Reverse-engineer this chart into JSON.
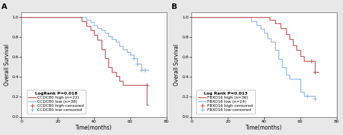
{
  "panel_A": {
    "label": "A",
    "title_logrank": "LogRank P=0.018",
    "high_label": "CCDC80 high (n=22)",
    "low_label": "CCDC80 low (n=38)",
    "high_censored_label": "CCDC80 high-censored",
    "low_censored_label": "CCDC80 low-censored",
    "high_color": "#c0504d",
    "low_color": "#8eb4e3",
    "xlabel": "Time(months)",
    "ylabel": "Overall Survival",
    "xlim": [
      0,
      75
    ],
    "ylim": [
      0.0,
      1.05
    ],
    "xticks": [
      0,
      20,
      40,
      60,
      80
    ],
    "yticks": [
      0.0,
      0.2,
      0.4,
      0.6,
      0.8,
      1.0
    ],
    "high_times": [
      0,
      30,
      33,
      36,
      38,
      40,
      42,
      44,
      46,
      48,
      50,
      52,
      54,
      56,
      57,
      59,
      61,
      63,
      65,
      67,
      69,
      70
    ],
    "high_surv": [
      1.0,
      1.0,
      0.96,
      0.91,
      0.87,
      0.82,
      0.77,
      0.68,
      0.59,
      0.5,
      0.45,
      0.41,
      0.36,
      0.32,
      0.32,
      0.32,
      0.32,
      0.32,
      0.32,
      0.32,
      0.12,
      0.12
    ],
    "low_times": [
      0,
      33,
      36,
      38,
      40,
      42,
      44,
      46,
      48,
      50,
      52,
      54,
      56,
      58,
      60,
      62,
      64,
      66,
      68,
      70
    ],
    "low_surv": [
      1.0,
      1.0,
      0.97,
      0.95,
      0.92,
      0.89,
      0.87,
      0.84,
      0.81,
      0.78,
      0.75,
      0.71,
      0.68,
      0.65,
      0.62,
      0.59,
      0.53,
      0.47,
      0.47,
      0.47
    ],
    "high_censor_times": [
      69
    ],
    "high_censor_surv": [
      0.32
    ],
    "low_censor_times": [
      62,
      64,
      66,
      68
    ],
    "low_censor_surv": [
      0.59,
      0.53,
      0.47,
      0.47
    ]
  },
  "panel_B": {
    "label": "B",
    "title_logrank": "Log Rank P=0.013",
    "high_label": "FBXO16 high (n=36)",
    "low_label": "FBXO16 low (n=24)",
    "high_censored_label": "FBXO16 high-censored",
    "low_censored_label": "FBXO16 low-censored",
    "high_color": "#c0504d",
    "low_color": "#8eb4e3",
    "xlabel": "Time(months)",
    "ylabel": "Overall Survival",
    "xlim": [
      0,
      75
    ],
    "ylim": [
      0.0,
      1.05
    ],
    "xticks": [
      0,
      20,
      40,
      60,
      80
    ],
    "yticks": [
      0.0,
      0.2,
      0.4,
      0.6,
      0.8,
      1.0
    ],
    "high_times": [
      0,
      40,
      43,
      46,
      49,
      52,
      54,
      56,
      58,
      60,
      62,
      64,
      66,
      68,
      70
    ],
    "high_surv": [
      1.0,
      1.0,
      0.97,
      0.94,
      0.89,
      0.83,
      0.78,
      0.72,
      0.67,
      0.61,
      0.56,
      0.56,
      0.56,
      0.45,
      0.45
    ],
    "low_times": [
      0,
      30,
      33,
      36,
      38,
      40,
      42,
      44,
      46,
      48,
      50,
      52,
      54,
      56,
      58,
      60,
      62,
      64,
      66,
      68
    ],
    "low_surv": [
      1.0,
      1.0,
      0.96,
      0.92,
      0.88,
      0.84,
      0.79,
      0.75,
      0.67,
      0.58,
      0.5,
      0.42,
      0.38,
      0.38,
      0.38,
      0.25,
      0.21,
      0.21,
      0.21,
      0.18
    ],
    "high_censor_times": [
      66,
      68
    ],
    "high_censor_surv": [
      0.56,
      0.45
    ],
    "low_censor_times": [
      64,
      68
    ],
    "low_censor_surv": [
      0.21,
      0.18
    ]
  },
  "fig_bg": "#e8e8e8",
  "ax_bg": "#ffffff",
  "legend_fontsize": 4.2,
  "legend_title_fontsize": 4.5,
  "axis_fontsize": 5.5,
  "tick_fontsize": 4.5,
  "panel_label_fontsize": 8
}
